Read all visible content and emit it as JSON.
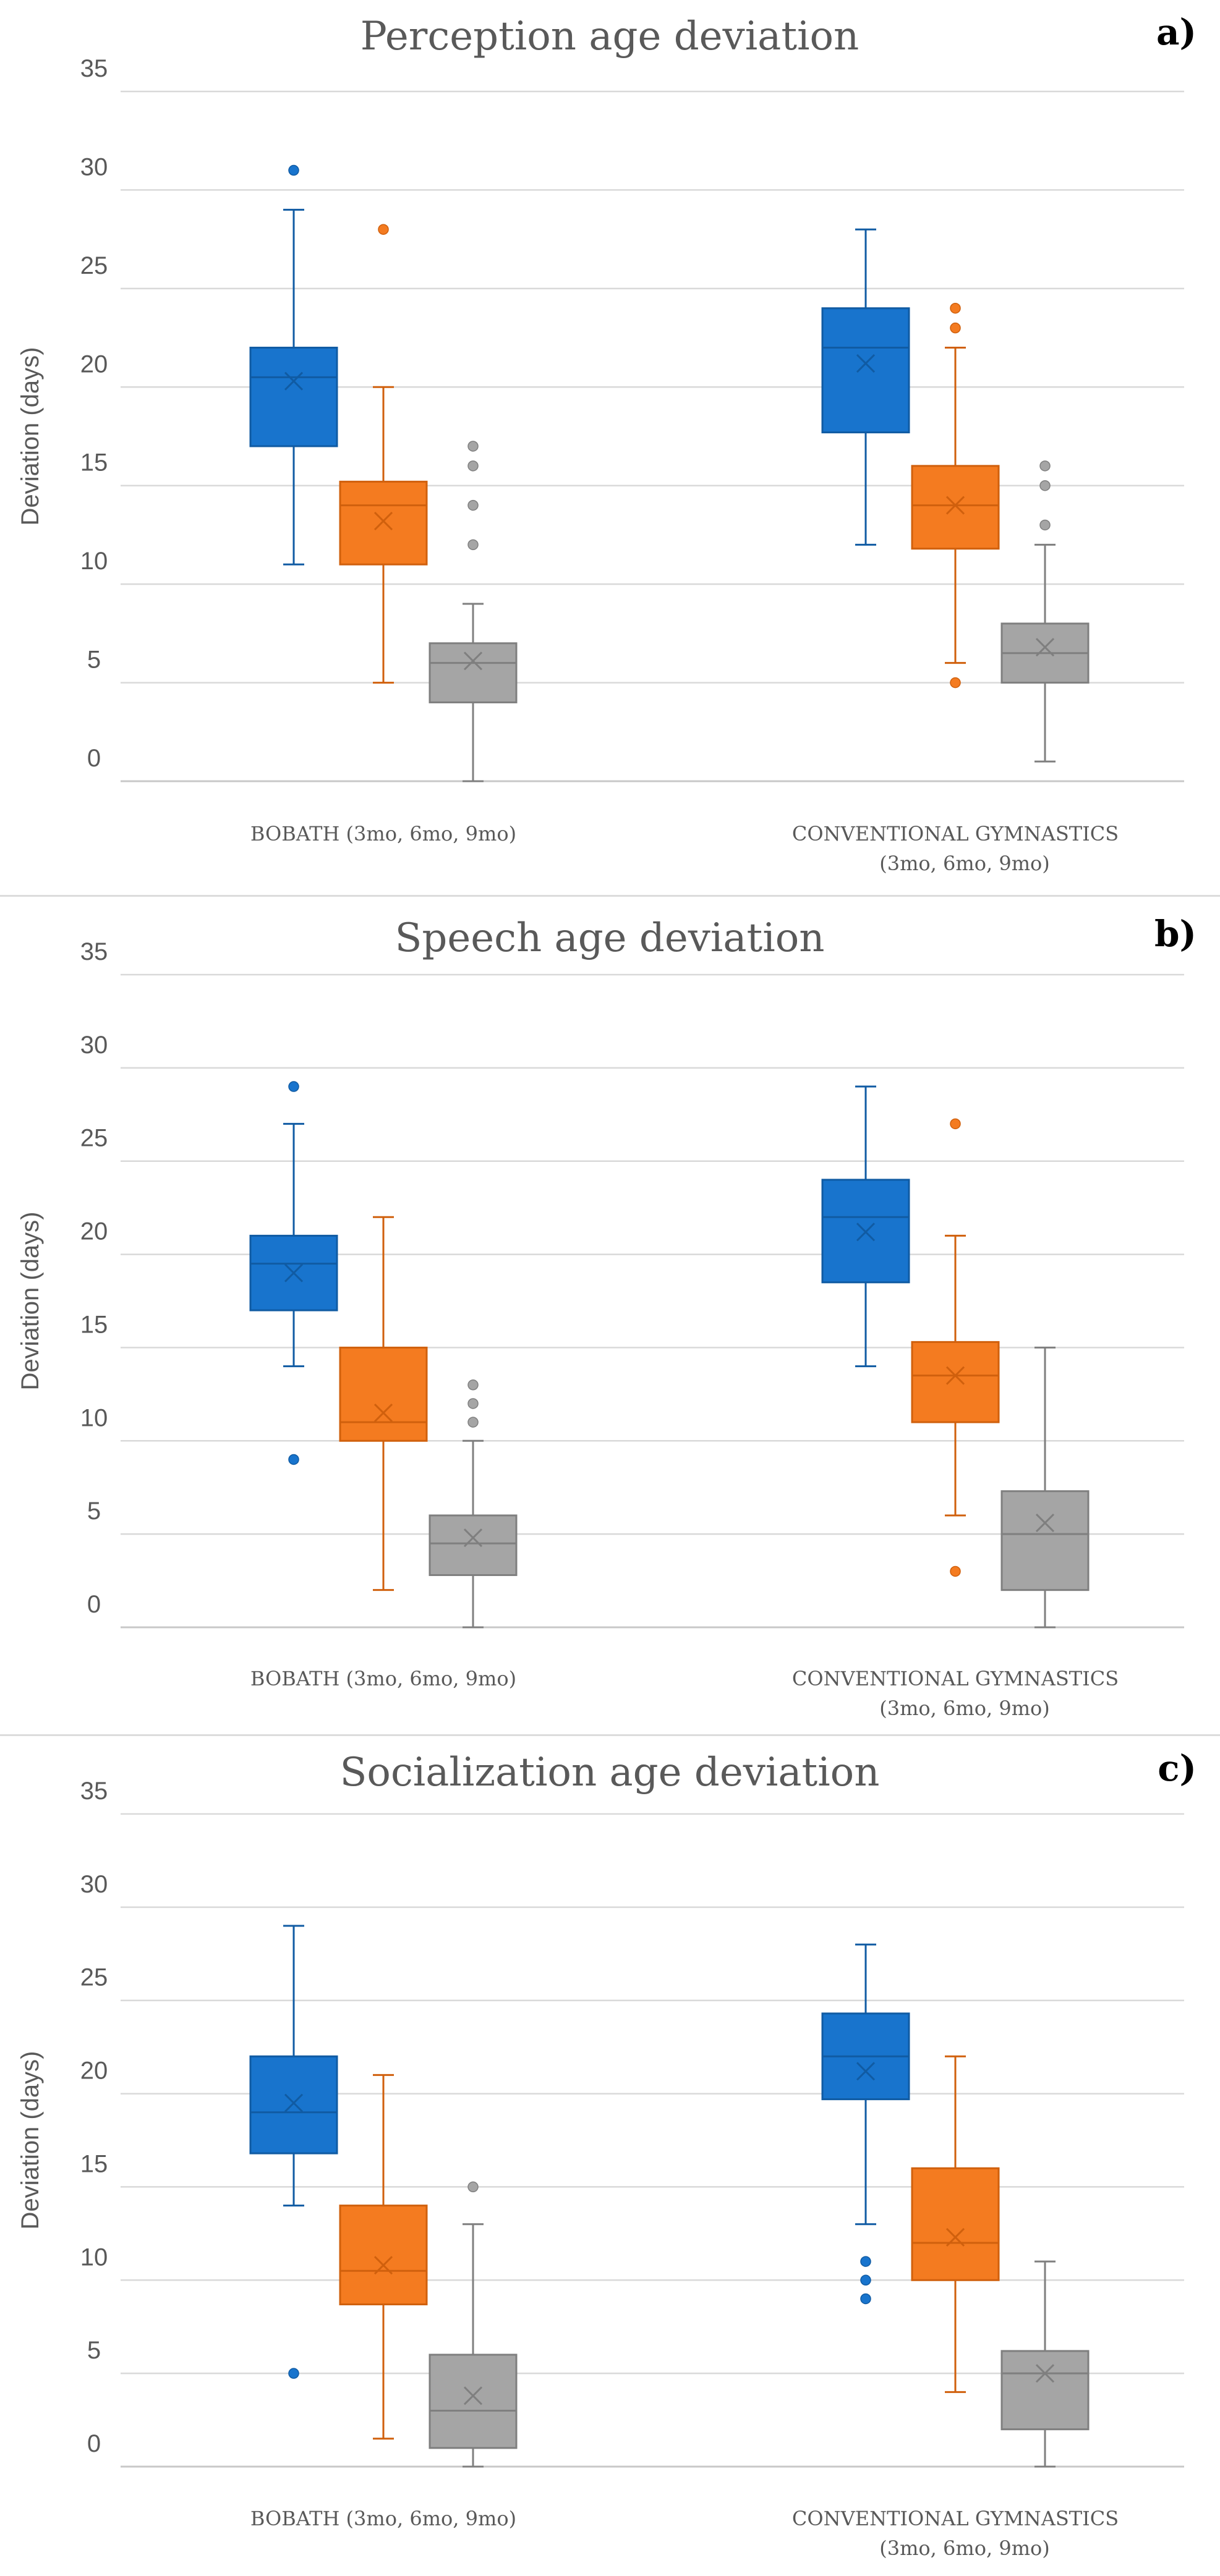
{
  "chart_data": [
    {
      "type": "boxplot",
      "panel_label": "a)",
      "title": "Perception age deviation",
      "ylabel": "Deviation (days)",
      "ylim": [
        0,
        35
      ],
      "yticks": [
        "0",
        "5",
        "10",
        "15",
        "20",
        "25",
        "30",
        "35"
      ],
      "categories": [
        {
          "lines": [
            "BOBATH (3mo, 6mo, 9mo)"
          ]
        },
        {
          "lines": [
            "CONVENTIONAL GYMNASTICS",
            "(3mo, 6mo, 9mo)"
          ]
        }
      ],
      "series_colors": [
        "#1874cd",
        "#f47b20",
        "#a5a5a5"
      ],
      "series_edge_colors": [
        "#105ba3",
        "#d0600d",
        "#7f7f7f"
      ],
      "boxes": [
        [
          {
            "min": 11,
            "q1": 17,
            "median": 20.5,
            "q3": 22,
            "max": 29,
            "mean": 20.3,
            "outliers": [
              31
            ]
          },
          {
            "min": 5,
            "q1": 11,
            "median": 14,
            "q3": 15.2,
            "max": 20,
            "mean": 13.2,
            "outliers": [
              28
            ]
          },
          {
            "min": 0,
            "q1": 4,
            "median": 6,
            "q3": 7,
            "max": 9,
            "mean": 6.1,
            "outliers": [
              12,
              14,
              16,
              17
            ]
          }
        ],
        [
          {
            "min": 12,
            "q1": 17.7,
            "median": 22,
            "q3": 24,
            "max": 28,
            "mean": 21.2,
            "outliers": []
          },
          {
            "min": 6,
            "q1": 11.8,
            "median": 14,
            "q3": 16,
            "max": 22,
            "mean": 14,
            "outliers": [
              5,
              23,
              24
            ]
          },
          {
            "min": 1,
            "q1": 5,
            "median": 6.5,
            "q3": 8,
            "max": 12,
            "mean": 6.8,
            "outliers": [
              13,
              15,
              16
            ]
          }
        ]
      ]
    },
    {
      "type": "boxplot",
      "panel_label": "b)",
      "title": "Speech age deviation",
      "ylabel": "Deviation (days)",
      "ylim": [
        0,
        35
      ],
      "yticks": [
        "0",
        "5",
        "10",
        "15",
        "20",
        "25",
        "30",
        "35"
      ],
      "categories": [
        {
          "lines": [
            "BOBATH (3mo, 6mo, 9mo)"
          ]
        },
        {
          "lines": [
            "CONVENTIONAL GYMNASTICS",
            "(3mo, 6mo, 9mo)"
          ]
        }
      ],
      "series_colors": [
        "#1874cd",
        "#f47b20",
        "#a5a5a5"
      ],
      "series_edge_colors": [
        "#105ba3",
        "#d0600d",
        "#7f7f7f"
      ],
      "boxes": [
        [
          {
            "min": 14,
            "q1": 17,
            "median": 19.5,
            "q3": 21,
            "max": 27,
            "mean": 19,
            "outliers": [
              9,
              29
            ]
          },
          {
            "min": 2,
            "q1": 10,
            "median": 11,
            "q3": 15,
            "max": 22,
            "mean": 11.5,
            "outliers": []
          },
          {
            "min": 0,
            "q1": 2.8,
            "median": 4.5,
            "q3": 6,
            "max": 10,
            "mean": 4.8,
            "outliers": [
              11,
              12,
              13
            ]
          }
        ],
        [
          {
            "min": 14,
            "q1": 18.5,
            "median": 22,
            "q3": 24,
            "max": 29,
            "mean": 21.2,
            "outliers": []
          },
          {
            "min": 6,
            "q1": 11,
            "median": 13.5,
            "q3": 15.3,
            "max": 21,
            "mean": 13.5,
            "outliers": [
              3,
              27
            ]
          },
          {
            "min": 0,
            "q1": 2,
            "median": 5,
            "q3": 7.3,
            "max": 15,
            "mean": 5.6,
            "outliers": []
          }
        ]
      ]
    },
    {
      "type": "boxplot",
      "panel_label": "c)",
      "title": "Socialization age deviation",
      "ylabel": "Deviation (days)",
      "ylim": [
        0,
        35
      ],
      "yticks": [
        "0",
        "5",
        "10",
        "15",
        "20",
        "25",
        "30",
        "35"
      ],
      "categories": [
        {
          "lines": [
            "BOBATH (3mo, 6mo, 9mo)"
          ]
        },
        {
          "lines": [
            "CONVENTIONAL GYMNASTICS",
            "(3mo, 6mo, 9mo)"
          ]
        }
      ],
      "series_colors": [
        "#1874cd",
        "#f47b20",
        "#a5a5a5"
      ],
      "series_edge_colors": [
        "#105ba3",
        "#d0600d",
        "#7f7f7f"
      ],
      "boxes": [
        [
          {
            "min": 14,
            "q1": 16.8,
            "median": 19,
            "q3": 22,
            "max": 29,
            "mean": 19.5,
            "outliers": [
              5
            ]
          },
          {
            "min": 1.5,
            "q1": 8.7,
            "median": 10.5,
            "q3": 14,
            "max": 21,
            "mean": 10.8,
            "outliers": []
          },
          {
            "min": 0,
            "q1": 1,
            "median": 3,
            "q3": 6,
            "max": 13,
            "mean": 3.8,
            "outliers": [
              15
            ]
          }
        ],
        [
          {
            "min": 13,
            "q1": 19.7,
            "median": 22,
            "q3": 24.3,
            "max": 28,
            "mean": 21.2,
            "outliers": [
              9,
              10,
              11
            ]
          },
          {
            "min": 4,
            "q1": 10,
            "median": 12,
            "q3": 16,
            "max": 22,
            "mean": 12.3,
            "outliers": []
          },
          {
            "min": 0,
            "q1": 2,
            "median": 5,
            "q3": 6.2,
            "max": 11,
            "mean": 5,
            "outliers": []
          }
        ]
      ]
    }
  ]
}
